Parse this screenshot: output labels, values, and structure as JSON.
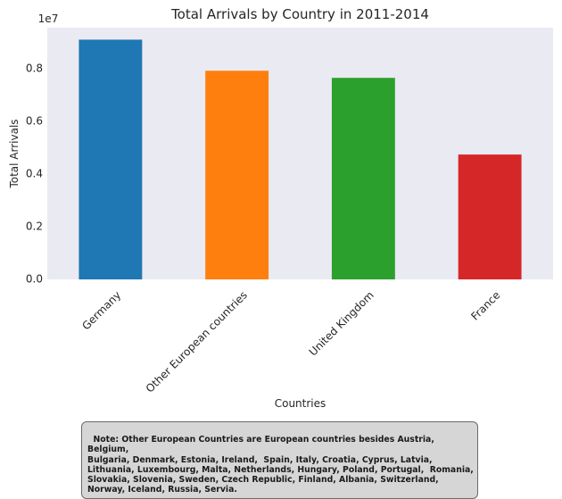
{
  "chart_data": {
    "type": "bar",
    "title": "Total Arrivals by Country in 2011-2014",
    "xlabel": "Countries",
    "ylabel": "Total Arrivals",
    "offset_label": "1e7",
    "categories": [
      "Germany",
      "Other European countries",
      "United Kingdom",
      "France"
    ],
    "values": [
      9100000,
      7920000,
      7650000,
      4740000
    ],
    "colors": [
      "#1f77b4",
      "#ff7f0e",
      "#2ca02c",
      "#d62728"
    ],
    "yticks": [
      {
        "value": 0,
        "label": "0.0"
      },
      {
        "value": 2000000,
        "label": "0.2"
      },
      {
        "value": 4000000,
        "label": "0.4"
      },
      {
        "value": 6000000,
        "label": "0.6"
      },
      {
        "value": 8000000,
        "label": "0.8"
      }
    ],
    "ylim": [
      0,
      9555000
    ],
    "grid": false,
    "background": "#eaeaf2"
  },
  "note": "Note: Other European Countries are European countries besides Austria, Belgium,\nBulgaria, Denmark, Estonia, Ireland,  Spain, Italy, Croatia, Cyprus, Latvia,\nLithuania, Luxembourg, Malta, Netherlands, Hungary, Poland, Portugal,  Romania,\nSlovakia, Slovenia, Sweden, Czech Republic, Finland, Albania, Switzerland,\nNorway, Iceland, Russia, Servia."
}
